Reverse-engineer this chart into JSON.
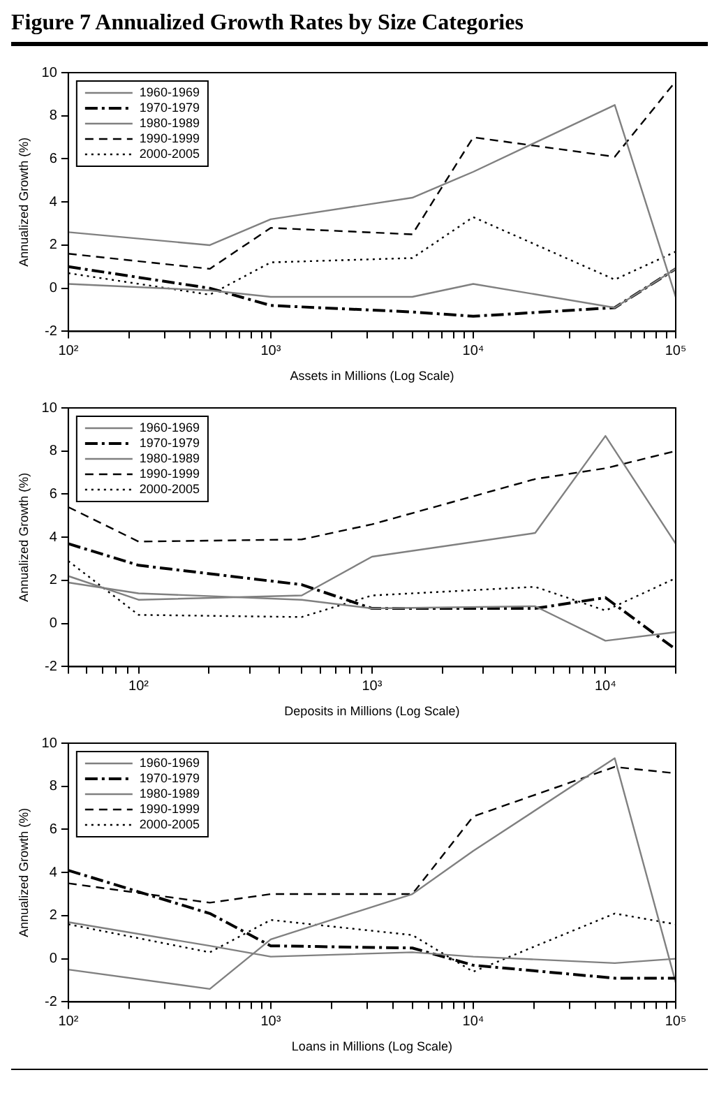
{
  "chart_data": [
    {
      "type": "line",
      "title": "Figure 7  Annualized Growth Rates by Size Categories",
      "xlabel": "Assets in Millions (Log Scale)",
      "ylabel": "Annualized Growth (%)",
      "x": [
        100,
        500,
        1000,
        5000,
        10000,
        50000,
        100000
      ],
      "log": "x",
      "legend": "top left",
      "grid": false,
      "marker": "none",
      "xlim": [
        100,
        100000
      ],
      "ylim": [
        -2,
        10
      ],
      "yticks": [
        -2,
        0,
        2,
        4,
        6,
        8,
        10
      ],
      "xticks": [
        {
          "value": 100,
          "label": "10²"
        },
        {
          "value": 200,
          "label": null
        },
        {
          "value": 300,
          "label": null
        },
        {
          "value": 400,
          "label": null
        },
        {
          "value": 500,
          "label": null
        },
        {
          "value": 600,
          "label": null
        },
        {
          "value": 700,
          "label": null
        },
        {
          "value": 800,
          "label": null
        },
        {
          "value": 900,
          "label": null
        },
        {
          "value": 1000,
          "label": "10³"
        },
        {
          "value": 2000,
          "label": null
        },
        {
          "value": 3000,
          "label": null
        },
        {
          "value": 4000,
          "label": null
        },
        {
          "value": 5000,
          "label": null
        },
        {
          "value": 6000,
          "label": null
        },
        {
          "value": 7000,
          "label": null
        },
        {
          "value": 8000,
          "label": null
        },
        {
          "value": 9000,
          "label": null
        },
        {
          "value": 10000,
          "label": "10⁴"
        },
        {
          "value": 20000,
          "label": null
        },
        {
          "value": 30000,
          "label": null
        },
        {
          "value": 40000,
          "label": null
        },
        {
          "value": 50000,
          "label": null
        },
        {
          "value": 60000,
          "label": null
        },
        {
          "value": 70000,
          "label": null
        },
        {
          "value": 80000,
          "label": null
        },
        {
          "value": 90000,
          "label": null
        },
        {
          "value": 100000,
          "label": "10⁵"
        }
      ],
      "series": [
        {
          "name": "1960-1969",
          "color": "#808080",
          "line_style": "solid",
          "values": [
            0.2,
            -0.1,
            -0.4,
            -0.4,
            0.2,
            -0.9,
            0.9
          ]
        },
        {
          "name": "1970-1979",
          "color": "#000000",
          "line_style": "dashdot",
          "values": [
            1.0,
            0.0,
            -0.8,
            -1.1,
            -1.3,
            -0.9,
            0.9
          ]
        },
        {
          "name": "1980-1989",
          "color": "#808080",
          "line_style": "solid",
          "values": [
            2.6,
            2.0,
            3.2,
            4.2,
            5.4,
            8.5,
            -0.4
          ]
        },
        {
          "name": "1990-1999",
          "color": "#000000",
          "line_style": "dashed",
          "values": [
            1.6,
            0.9,
            2.8,
            2.5,
            7.0,
            6.1,
            9.6
          ]
        },
        {
          "name": "2000-2005",
          "color": "#000000",
          "line_style": "dotted",
          "values": [
            0.7,
            -0.3,
            1.2,
            1.4,
            3.3,
            0.4,
            1.7
          ]
        }
      ]
    },
    {
      "type": "line",
      "xlabel": "Deposits in Millions (Log Scale)",
      "ylabel": "Annualized Growth (%)",
      "x": [
        50,
        100,
        500,
        1000,
        5000,
        10000,
        20000
      ],
      "log": "x",
      "legend": "top left",
      "grid": false,
      "marker": "none",
      "xlim": [
        50,
        20000
      ],
      "ylim": [
        -2,
        10
      ],
      "yticks": [
        -2,
        0,
        2,
        4,
        6,
        8,
        10
      ],
      "xticks": [
        {
          "value": 50,
          "label": null
        },
        {
          "value": 60,
          "label": null
        },
        {
          "value": 70,
          "label": null
        },
        {
          "value": 80,
          "label": null
        },
        {
          "value": 90,
          "label": null
        },
        {
          "value": 100,
          "label": "10²"
        },
        {
          "value": 200,
          "label": null
        },
        {
          "value": 300,
          "label": null
        },
        {
          "value": 400,
          "label": null
        },
        {
          "value": 500,
          "label": null
        },
        {
          "value": 600,
          "label": null
        },
        {
          "value": 700,
          "label": null
        },
        {
          "value": 800,
          "label": null
        },
        {
          "value": 900,
          "label": null
        },
        {
          "value": 1000,
          "label": "10³"
        },
        {
          "value": 2000,
          "label": null
        },
        {
          "value": 3000,
          "label": null
        },
        {
          "value": 4000,
          "label": null
        },
        {
          "value": 5000,
          "label": null
        },
        {
          "value": 6000,
          "label": null
        },
        {
          "value": 7000,
          "label": null
        },
        {
          "value": 8000,
          "label": null
        },
        {
          "value": 9000,
          "label": null
        },
        {
          "value": 10000,
          "label": "10⁴"
        },
        {
          "value": 20000,
          "label": null
        }
      ],
      "series": [
        {
          "name": "1960-1969",
          "color": "#808080",
          "line_style": "solid",
          "values": [
            1.9,
            1.4,
            1.1,
            0.7,
            0.8,
            -0.8,
            -0.4
          ]
        },
        {
          "name": "1970-1979",
          "color": "#000000",
          "line_style": "dashdot",
          "values": [
            3.7,
            2.7,
            1.8,
            0.7,
            0.7,
            1.2,
            -1.2
          ]
        },
        {
          "name": "1980-1989",
          "color": "#808080",
          "line_style": "solid",
          "values": [
            2.2,
            1.1,
            1.3,
            3.1,
            4.2,
            8.7,
            3.7
          ]
        },
        {
          "name": "1990-1999",
          "color": "#000000",
          "line_style": "dashed",
          "values": [
            5.4,
            3.8,
            3.9,
            4.6,
            6.7,
            7.2,
            8.0
          ]
        },
        {
          "name": "2000-2005",
          "color": "#000000",
          "line_style": "dotted",
          "values": [
            2.9,
            0.4,
            0.3,
            1.3,
            1.7,
            0.6,
            2.1
          ]
        }
      ]
    },
    {
      "type": "line",
      "xlabel": "Loans in Millions (Log Scale)",
      "ylabel": "Annualized Growth (%)",
      "x": [
        100,
        500,
        1000,
        5000,
        10000,
        50000,
        100000
      ],
      "log": "x",
      "legend": "top left",
      "grid": false,
      "marker": "none",
      "xlim": [
        100,
        100000
      ],
      "ylim": [
        -2,
        10
      ],
      "yticks": [
        -2,
        0,
        2,
        4,
        6,
        8,
        10
      ],
      "xticks": [
        {
          "value": 100,
          "label": "10²"
        },
        {
          "value": 200,
          "label": null
        },
        {
          "value": 300,
          "label": null
        },
        {
          "value": 400,
          "label": null
        },
        {
          "value": 500,
          "label": null
        },
        {
          "value": 600,
          "label": null
        },
        {
          "value": 700,
          "label": null
        },
        {
          "value": 800,
          "label": null
        },
        {
          "value": 900,
          "label": null
        },
        {
          "value": 1000,
          "label": "10³"
        },
        {
          "value": 2000,
          "label": null
        },
        {
          "value": 3000,
          "label": null
        },
        {
          "value": 4000,
          "label": null
        },
        {
          "value": 5000,
          "label": null
        },
        {
          "value": 6000,
          "label": null
        },
        {
          "value": 7000,
          "label": null
        },
        {
          "value": 8000,
          "label": null
        },
        {
          "value": 9000,
          "label": null
        },
        {
          "value": 10000,
          "label": "10⁴"
        },
        {
          "value": 20000,
          "label": null
        },
        {
          "value": 30000,
          "label": null
        },
        {
          "value": 40000,
          "label": null
        },
        {
          "value": 50000,
          "label": null
        },
        {
          "value": 60000,
          "label": null
        },
        {
          "value": 70000,
          "label": null
        },
        {
          "value": 80000,
          "label": null
        },
        {
          "value": 90000,
          "label": null
        },
        {
          "value": 100000,
          "label": "10⁵"
        }
      ],
      "series": [
        {
          "name": "1960-1969",
          "color": "#808080",
          "line_style": "solid",
          "values": [
            1.7,
            0.6,
            0.1,
            0.3,
            0.1,
            -0.2,
            0.0
          ]
        },
        {
          "name": "1970-1979",
          "color": "#000000",
          "line_style": "dashdot",
          "values": [
            4.1,
            2.1,
            0.6,
            0.5,
            -0.3,
            -0.9,
            -0.9
          ]
        },
        {
          "name": "1980-1989",
          "color": "#808080",
          "line_style": "solid",
          "values": [
            -0.5,
            -1.4,
            0.9,
            3.0,
            5.0,
            9.3,
            -1.1
          ]
        },
        {
          "name": "1990-1999",
          "color": "#000000",
          "line_style": "dashed",
          "values": [
            3.5,
            2.6,
            3.0,
            3.0,
            6.6,
            8.9,
            8.6
          ]
        },
        {
          "name": "2000-2005",
          "color": "#000000",
          "line_style": "dotted",
          "values": [
            1.6,
            0.3,
            1.8,
            1.1,
            -0.6,
            2.1,
            1.6
          ]
        }
      ]
    }
  ]
}
